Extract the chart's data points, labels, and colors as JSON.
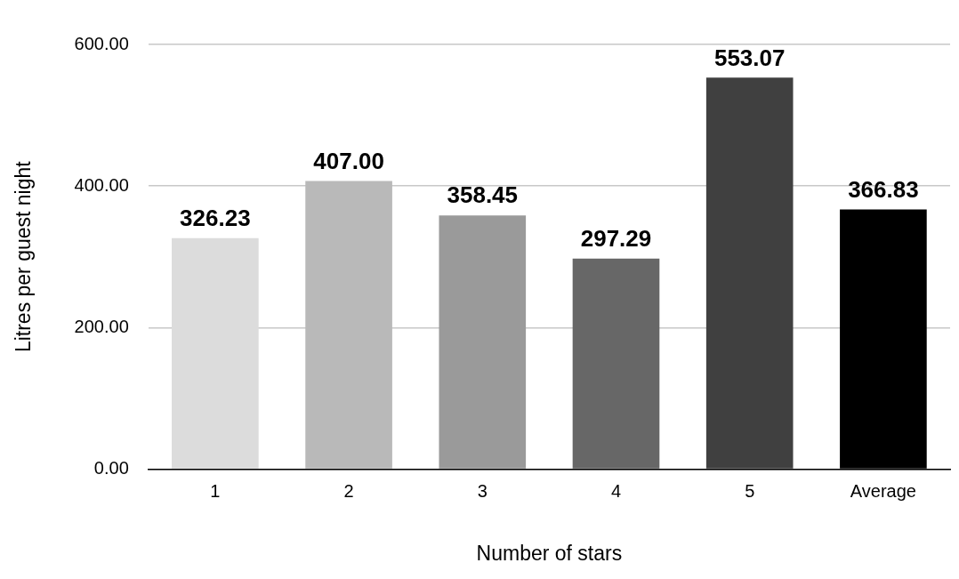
{
  "chart_data": {
    "type": "bar",
    "xlabel": "Number of stars",
    "ylabel": "Litres per guest night",
    "categories": [
      "1",
      "2",
      "3",
      "4",
      "5",
      "Average"
    ],
    "values": [
      326.23,
      407.0,
      358.45,
      297.29,
      553.07,
      366.83
    ],
    "value_labels": [
      "326.23",
      "407.00",
      "358.45",
      "297.29",
      "553.07",
      "366.83"
    ],
    "colors": [
      "#dcdcdc",
      "#b9b9b9",
      "#9a9a9a",
      "#676767",
      "#404040",
      "#000000"
    ],
    "ylim": [
      0,
      600
    ],
    "yticks": [
      {
        "value": 0,
        "label": "0.00"
      },
      {
        "value": 200,
        "label": "200.00"
      },
      {
        "value": 400,
        "label": "400.00"
      },
      {
        "value": 600,
        "label": "600.00"
      }
    ],
    "grid": "y",
    "legend": false
  }
}
